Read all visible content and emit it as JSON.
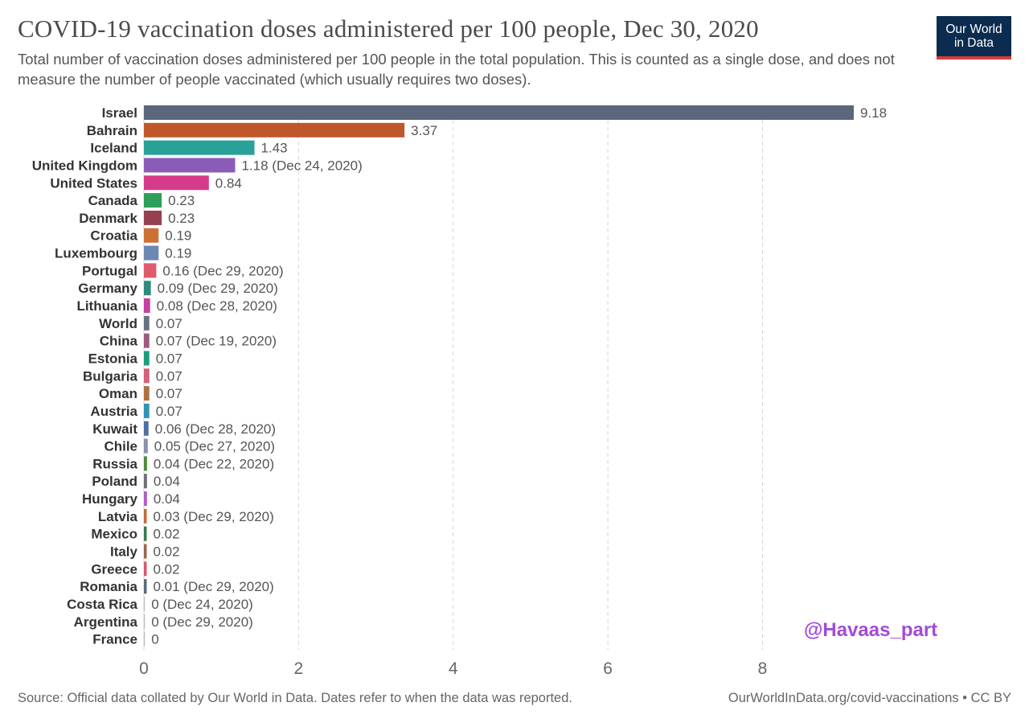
{
  "header": {
    "title": "COVID-19 vaccination doses administered per 100 people, Dec 30, 2020",
    "subtitle": "Total number of vaccination doses administered per 100 people in the total population. This is counted as a single dose, and does not measure the number of people vaccinated (which usually requires two doses).",
    "logo_line1": "Our World",
    "logo_line2": "in Data"
  },
  "watermark": "@Havaas_part",
  "footer": {
    "source": "Source: Official data collated by Our World in Data. Dates refer to when the data was reported.",
    "link": "OurWorldInData.org/covid-vaccinations • CC BY"
  },
  "chart_data": {
    "type": "bar",
    "orientation": "horizontal",
    "title": "COVID-19 vaccination doses administered per 100 people, Dec 30, 2020",
    "xlabel": "",
    "ylabel": "",
    "xlim": [
      0,
      9.18
    ],
    "xticks": [
      0,
      2,
      4,
      6,
      8
    ],
    "grid": "vertical dashed",
    "legend": "none",
    "categories": [
      "Israel",
      "Bahrain",
      "Iceland",
      "United Kingdom",
      "United States",
      "Canada",
      "Denmark",
      "Croatia",
      "Luxembourg",
      "Portugal",
      "Germany",
      "Lithuania",
      "World",
      "China",
      "Estonia",
      "Bulgaria",
      "Oman",
      "Austria",
      "Kuwait",
      "Chile",
      "Russia",
      "Poland",
      "Hungary",
      "Latvia",
      "Mexico",
      "Italy",
      "Greece",
      "Romania",
      "Costa Rica",
      "Argentina",
      "France"
    ],
    "values": [
      9.18,
      3.37,
      1.43,
      1.18,
      0.84,
      0.23,
      0.23,
      0.19,
      0.19,
      0.16,
      0.09,
      0.08,
      0.07,
      0.07,
      0.07,
      0.07,
      0.07,
      0.07,
      0.06,
      0.05,
      0.04,
      0.04,
      0.04,
      0.03,
      0.02,
      0.02,
      0.02,
      0.01,
      0,
      0,
      0
    ],
    "value_labels": [
      "9.18",
      "3.37",
      "1.43",
      "1.18 (Dec 24, 2020)",
      "0.84",
      "0.23",
      "0.23",
      "0.19",
      "0.19",
      "0.16 (Dec 29, 2020)",
      "0.09 (Dec 29, 2020)",
      "0.08 (Dec 28, 2020)",
      "0.07",
      "0.07 (Dec 19, 2020)",
      "0.07",
      "0.07",
      "0.07",
      "0.07",
      "0.06 (Dec 28, 2020)",
      "0.05 (Dec 27, 2020)",
      "0.04 (Dec 22, 2020)",
      "0.04",
      "0.04",
      "0.03 (Dec 29, 2020)",
      "0.02",
      "0.02",
      "0.02",
      "0.01 (Dec 29, 2020)",
      "0 (Dec 24, 2020)",
      "0 (Dec 29, 2020)",
      "0"
    ],
    "colors": [
      "#5c677d",
      "#c0572c",
      "#2aa198",
      "#8a5cb8",
      "#d63b8a",
      "#2e9e5b",
      "#94404f",
      "#cd7036",
      "#6d87b4",
      "#df5a6c",
      "#2f8a80",
      "#c83fa3",
      "#6b7080",
      "#9b5a7e",
      "#1c9e7e",
      "#d4607a",
      "#b0703f",
      "#2f94b8",
      "#4b6fa3",
      "#8a8fb0",
      "#4d8a3a",
      "#6f6f7a",
      "#b45cc4",
      "#c66a3a",
      "#3a7a4a",
      "#a0664a",
      "#d85a6a",
      "#5a6a80",
      "#6a8aa0",
      "#7a7aa0",
      "#3a6aa0"
    ]
  }
}
